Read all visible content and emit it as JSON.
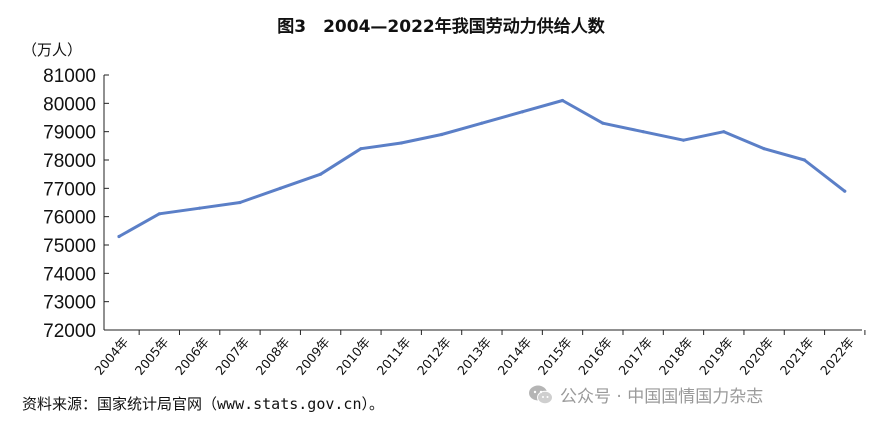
{
  "chart_data": {
    "type": "line",
    "title": "图3　2004—2022年我国劳动力供给人数",
    "ylabel": "（万人）",
    "xlabel": "",
    "ylim": [
      72000,
      81000
    ],
    "yticks": [
      72000,
      73000,
      74000,
      75000,
      76000,
      77000,
      78000,
      79000,
      80000,
      81000
    ],
    "categories": [
      "2004年",
      "2005年",
      "2006年",
      "2007年",
      "2008年",
      "2009年",
      "2010年",
      "2011年",
      "2012年",
      "2013年",
      "2014年",
      "2015年",
      "2016年",
      "2017年",
      "2018年",
      "2019年",
      "2020年",
      "2021年",
      "2022年"
    ],
    "series": [
      {
        "values": [
          75300,
          76100,
          76300,
          76500,
          77000,
          77500,
          78400,
          78600,
          78900,
          79300,
          79700,
          80100,
          79300,
          79000,
          78700,
          79000,
          78400,
          78000,
          76900
        ]
      }
    ],
    "line_color": "#5b7fc7",
    "grid": false
  },
  "source": "资料来源：国家统计局官网（www.stats.gov.cn）。",
  "watermark": {
    "text": "公众号 · 中国国情国力杂志",
    "icon": "wechat-icon"
  }
}
